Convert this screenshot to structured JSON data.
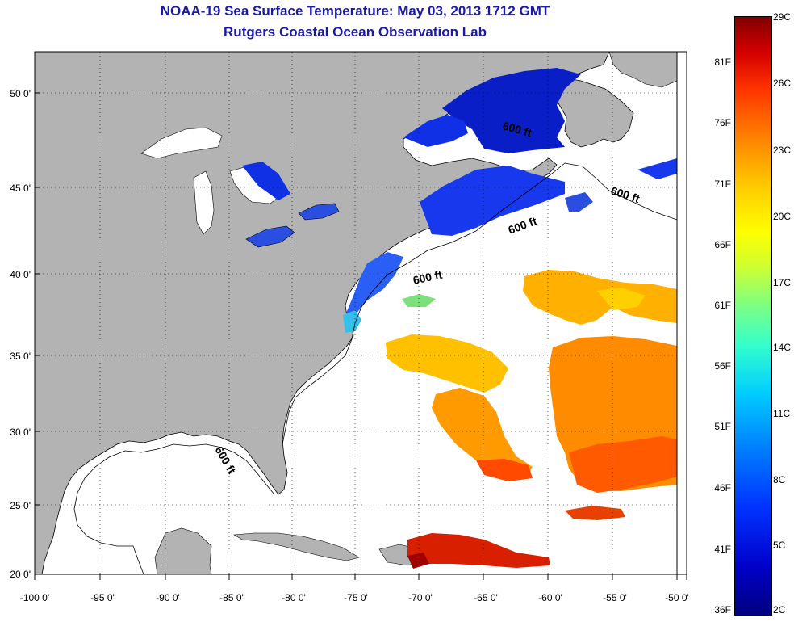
{
  "title": "NOAA-19 Sea Surface Temperature:  May 03, 2013 1712 GMT",
  "subtitle": "Rutgers Coastal Ocean Observation Lab",
  "colors": {
    "land": "#b3b3b3",
    "title": "#1a1aa6",
    "colormap": [
      "#000080",
      "#0000c8",
      "#0033ff",
      "#0080ff",
      "#00ccff",
      "#33ffcc",
      "#80ff80",
      "#ccff33",
      "#ffff00",
      "#ffc800",
      "#ff8000",
      "#ff3300",
      "#d40000",
      "#800000"
    ]
  },
  "map": {
    "lat_ticks": [
      "50 0'",
      "45 0'",
      "40 0'",
      "35 0'",
      "30 0'",
      "25 0'",
      "20 0'"
    ],
    "lon_ticks": [
      "-100 0'",
      "-95 0'",
      "-90 0'",
      "-85 0'",
      "-80 0'",
      "-75 0'",
      "-70 0'",
      "-65 0'",
      "-60 0'",
      "-55 0'",
      "-50 0'"
    ],
    "contour_labels": [
      "600 ft",
      "600 ft",
      "600 ft",
      "600 ft",
      "600 ft"
    ]
  },
  "colorbar": {
    "fahrenheit": [
      "81F",
      "76F",
      "71F",
      "66F",
      "61F",
      "56F",
      "51F",
      "46F",
      "41F",
      "36F"
    ],
    "celsius": [
      "29C",
      "26C",
      "23C",
      "20C",
      "17C",
      "14C",
      "11C",
      "8C",
      "5C",
      "2C"
    ]
  }
}
